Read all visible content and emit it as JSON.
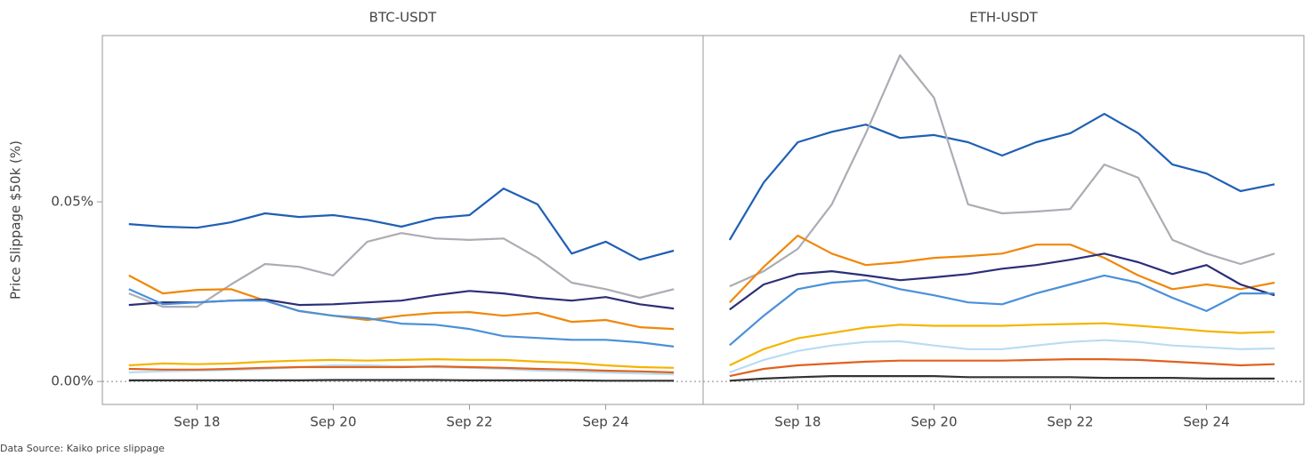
{
  "source": "Data Source: Kaiko price slippage",
  "chart_data": [
    {
      "type": "line",
      "title": "BTC-USDT",
      "ylabel": "Price Slippage $50k (%)",
      "x": [
        17,
        17.5,
        18,
        18.5,
        19,
        19.5,
        20,
        20.5,
        21,
        21.5,
        22,
        22.5,
        23,
        23.5,
        24,
        24.5,
        25
      ],
      "xlim": [
        16.61,
        25.43
      ],
      "ylim": [
        -0.0064,
        0.0963
      ],
      "xticks": [
        {
          "value": 18,
          "label": "Sep 18"
        },
        {
          "value": 20,
          "label": "Sep 20"
        },
        {
          "value": 22,
          "label": "Sep 22"
        },
        {
          "value": 24,
          "label": "Sep 24"
        }
      ],
      "yticks": [
        {
          "value": 0,
          "label": "0.00%"
        },
        {
          "value": 0.05,
          "label": "0.05%"
        }
      ],
      "reference_line": 0,
      "series": [
        {
          "color": "#1f5fb4",
          "values": [
            0.0438,
            0.0431,
            0.0428,
            0.0443,
            0.0468,
            0.0458,
            0.0463,
            0.045,
            0.0431,
            0.0455,
            0.0463,
            0.0537,
            0.0493,
            0.0356,
            0.0389,
            0.0339,
            0.0364
          ]
        },
        {
          "color": "#acacb4",
          "values": [
            0.0245,
            0.0208,
            0.0208,
            0.027,
            0.0327,
            0.0319,
            0.0295,
            0.0389,
            0.0413,
            0.0398,
            0.0394,
            0.0398,
            0.0344,
            0.0275,
            0.0257,
            0.0233,
            0.0257
          ]
        },
        {
          "color": "#f0870a",
          "values": [
            0.0295,
            0.0245,
            0.0255,
            0.0257,
            0.0225,
            0.0196,
            0.0183,
            0.0171,
            0.0183,
            0.0191,
            0.0193,
            0.0183,
            0.0191,
            0.0166,
            0.0171,
            0.0151,
            0.0146
          ]
        },
        {
          "color": "#2b2e78",
          "values": [
            0.0213,
            0.022,
            0.022,
            0.0225,
            0.0228,
            0.0213,
            0.0215,
            0.022,
            0.0225,
            0.024,
            0.0252,
            0.0245,
            0.0233,
            0.0225,
            0.0235,
            0.0215,
            0.0203
          ]
        },
        {
          "color": "#4a90d9",
          "values": [
            0.0257,
            0.0215,
            0.022,
            0.0225,
            0.0225,
            0.0196,
            0.0183,
            0.0176,
            0.0161,
            0.0158,
            0.0146,
            0.0126,
            0.0121,
            0.0116,
            0.0116,
            0.0109,
            0.0097
          ]
        },
        {
          "color": "#f5b400",
          "values": [
            0.0045,
            0.005,
            0.0048,
            0.005,
            0.0055,
            0.0058,
            0.006,
            0.0058,
            0.006,
            0.0062,
            0.006,
            0.006,
            0.0055,
            0.0052,
            0.0045,
            0.004,
            0.0038
          ]
        },
        {
          "color": "#b8dcf5",
          "values": [
            0.0025,
            0.0028,
            0.003,
            0.0032,
            0.0035,
            0.004,
            0.0045,
            0.0045,
            0.0042,
            0.004,
            0.0038,
            0.0035,
            0.003,
            0.0028,
            0.0025,
            0.0022,
            0.002
          ]
        },
        {
          "color": "#e0621e",
          "values": [
            0.0035,
            0.0033,
            0.0033,
            0.0035,
            0.0038,
            0.004,
            0.004,
            0.004,
            0.004,
            0.0042,
            0.004,
            0.0038,
            0.0035,
            0.0033,
            0.003,
            0.0028,
            0.0025
          ]
        },
        {
          "color": "#333333",
          "values": [
            0.0003,
            0.0003,
            0.0003,
            0.0003,
            0.0003,
            0.0003,
            0.0004,
            0.0004,
            0.0004,
            0.0004,
            0.0003,
            0.0003,
            0.0003,
            0.0003,
            0.0002,
            0.0002,
            0.0002
          ]
        }
      ]
    },
    {
      "type": "line",
      "title": "ETH-USDT",
      "x": [
        17,
        17.5,
        18,
        18.5,
        19,
        19.5,
        20,
        20.5,
        21,
        21.5,
        22,
        22.5,
        23,
        23.5,
        24,
        24.5,
        25
      ],
      "xlim": [
        16.61,
        25.43
      ],
      "ylim": [
        -0.0064,
        0.0963
      ],
      "xticks": [
        {
          "value": 18,
          "label": "Sep 18"
        },
        {
          "value": 20,
          "label": "Sep 20"
        },
        {
          "value": 22,
          "label": "Sep 22"
        },
        {
          "value": 24,
          "label": "Sep 24"
        }
      ],
      "reference_line": 0,
      "series": [
        {
          "color": "#1f5fb4",
          "values": [
            0.0394,
            0.0554,
            0.0666,
            0.0695,
            0.0715,
            0.0678,
            0.0686,
            0.0666,
            0.0629,
            0.0666,
            0.0691,
            0.0745,
            0.0691,
            0.0604,
            0.0579,
            0.053,
            0.0549
          ]
        },
        {
          "color": "#acacb4",
          "values": [
            0.0265,
            0.0307,
            0.0369,
            0.0493,
            0.0691,
            0.0908,
            0.079,
            0.0493,
            0.0468,
            0.0473,
            0.048,
            0.0604,
            0.0567,
            0.0394,
            0.0356,
            0.0327,
            0.0356
          ]
        },
        {
          "color": "#f0870a",
          "values": [
            0.022,
            0.0319,
            0.0406,
            0.0356,
            0.0324,
            0.0332,
            0.0344,
            0.0349,
            0.0356,
            0.0381,
            0.0381,
            0.0344,
            0.0295,
            0.0257,
            0.027,
            0.0257,
            0.0275
          ]
        },
        {
          "color": "#2b2e78",
          "values": [
            0.02,
            0.027,
            0.0299,
            0.0307,
            0.0295,
            0.0282,
            0.029,
            0.0299,
            0.0314,
            0.0324,
            0.0339,
            0.0356,
            0.0332,
            0.0299,
            0.0324,
            0.027,
            0.024
          ]
        },
        {
          "color": "#4a90d9",
          "values": [
            0.0101,
            0.0183,
            0.0257,
            0.0275,
            0.0282,
            0.0257,
            0.024,
            0.022,
            0.0215,
            0.0245,
            0.027,
            0.0295,
            0.0275,
            0.0233,
            0.0196,
            0.0245,
            0.0245
          ]
        },
        {
          "color": "#f5b400",
          "values": [
            0.0045,
            0.009,
            0.012,
            0.0135,
            0.015,
            0.0158,
            0.0155,
            0.0155,
            0.0155,
            0.0158,
            0.016,
            0.0162,
            0.0155,
            0.0148,
            0.014,
            0.0135,
            0.0138
          ]
        },
        {
          "color": "#b8dcf5",
          "values": [
            0.0025,
            0.006,
            0.0085,
            0.01,
            0.011,
            0.0112,
            0.01,
            0.009,
            0.009,
            0.01,
            0.011,
            0.0115,
            0.011,
            0.01,
            0.0095,
            0.009,
            0.0092
          ]
        },
        {
          "color": "#e0621e",
          "values": [
            0.0015,
            0.0035,
            0.0045,
            0.005,
            0.0055,
            0.0058,
            0.0058,
            0.0058,
            0.0058,
            0.006,
            0.0062,
            0.0062,
            0.006,
            0.0055,
            0.005,
            0.0045,
            0.0048
          ]
        },
        {
          "color": "#333333",
          "values": [
            0.0002,
            0.0008,
            0.0012,
            0.0015,
            0.0015,
            0.0015,
            0.0015,
            0.0012,
            0.0012,
            0.0012,
            0.0012,
            0.001,
            0.001,
            0.001,
            0.0008,
            0.0008,
            0.0008
          ]
        }
      ]
    }
  ]
}
